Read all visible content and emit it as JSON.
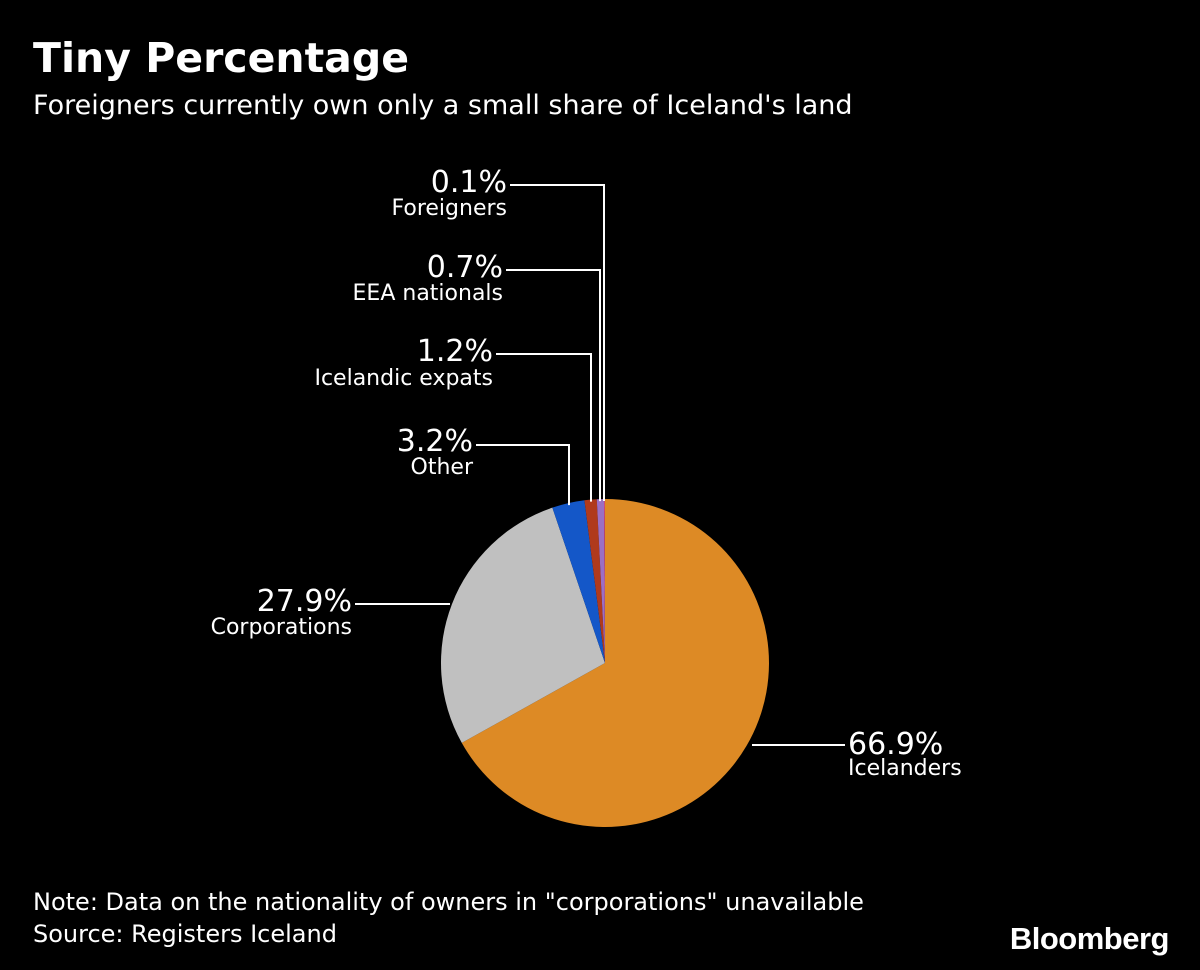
{
  "title": "Tiny Percentage",
  "subtitle": "Foreigners currently own only a small share of Iceland's land",
  "note": "Note: Data on the nationality of owners in \"corporations\" unavailable",
  "source": "Source: Registers Iceland",
  "brand": "Bloomberg",
  "chart_data": {
    "type": "pie",
    "start_angle_deg": 0,
    "direction": "clockwise",
    "slices": [
      {
        "name": "Icelanders",
        "value": 66.9,
        "label": "66.9%",
        "color": "#dd8a25"
      },
      {
        "name": "Corporations",
        "value": 27.9,
        "label": "27.9%",
        "color": "#c0c0c0"
      },
      {
        "name": "Other",
        "value": 3.2,
        "label": "3.2%",
        "color": "#1457c8"
      },
      {
        "name": "Icelandic expats",
        "value": 1.2,
        "label": "1.2%",
        "color": "#b03a1c"
      },
      {
        "name": "EEA nationals",
        "value": 0.7,
        "label": "0.7%",
        "color": "#9b6fc4"
      },
      {
        "name": "Foreigners",
        "value": 0.1,
        "label": "0.1%",
        "color": "#cf4a7a"
      }
    ]
  }
}
